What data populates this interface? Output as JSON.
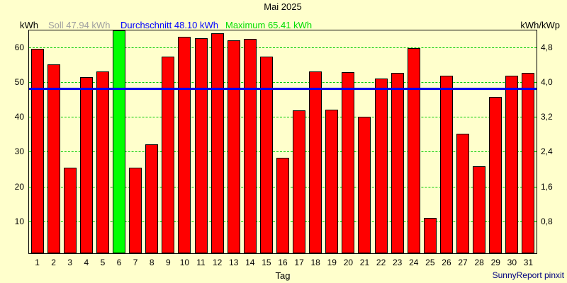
{
  "footer": {
    "credit": "SunnyReport pinxit"
  },
  "chart_data": {
    "type": "bar",
    "title": "Mai 2025",
    "xlabel": "Tag",
    "left_axis_unit": "kWh",
    "right_axis_unit": "kWh/kWp",
    "categories": [
      1,
      2,
      3,
      4,
      5,
      6,
      7,
      8,
      9,
      10,
      11,
      12,
      13,
      14,
      15,
      16,
      17,
      18,
      19,
      20,
      21,
      22,
      23,
      24,
      25,
      26,
      27,
      28,
      29,
      30,
      31
    ],
    "values": [
      59.5,
      55.2,
      25.4,
      51.4,
      53.1,
      65.41,
      25.4,
      32.2,
      57.3,
      63.0,
      62.6,
      64.0,
      62.1,
      62.5,
      57.3,
      28.2,
      41.9,
      53.1,
      42.1,
      52.9,
      40.0,
      51.1,
      52.6,
      59.7,
      11.0,
      51.9,
      35.1,
      25.9,
      45.8,
      51.8,
      52.6
    ],
    "max_day": 6,
    "soll": 47.94,
    "durchschnitt": 48.1,
    "maximum": 65.41,
    "legend": {
      "soll_text": "Soll 47.94 kWh",
      "durchschnitt_text": "Durchschnitt 48.10 kWh",
      "maximum_text": "Maximum 65.41 kWh"
    },
    "yticks_left": [
      10,
      20,
      30,
      40,
      50,
      60
    ],
    "yticks_right": [
      "0,8",
      "1,6",
      "2,4",
      "3,2",
      "4,0",
      "4,8"
    ],
    "ylim_left": [
      0,
      65
    ],
    "grid": true,
    "legend_position": "top",
    "colors": {
      "background": "#FFFFCC",
      "bar": "#FF0000",
      "bar_max": "#00FF00",
      "bar_border": "#000000",
      "grid": "#00CC00",
      "average_line": "#0000EE",
      "soll_text": "#A0A0A0",
      "durchschnitt_text": "#0000FF",
      "maximum_text": "#00DD00",
      "footer_text": "#000080",
      "axis": "#000000"
    }
  }
}
